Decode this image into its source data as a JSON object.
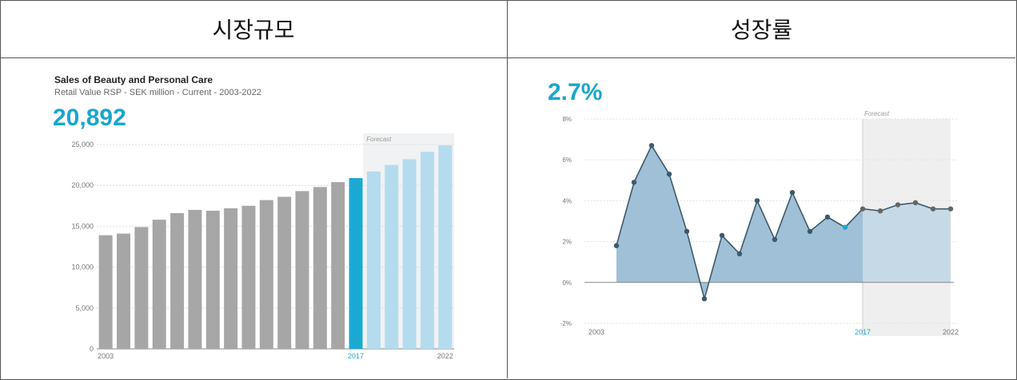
{
  "headers": {
    "left": "시장규모",
    "right": "성장률"
  },
  "colors": {
    "history": "#a6a6a6",
    "current": "#1ba9d3",
    "forecast": "#b4dcee",
    "accent": "#1aa6cc",
    "area_hist": "#9fc0d6",
    "area_fc": "#c6d9e6",
    "line": "#3b5a6e"
  },
  "chart_data": [
    {
      "type": "bar",
      "title": "Sales of Beauty and Personal Care",
      "subtitle": "Retail Value RSP - SEK million - Current - 2003-2022",
      "headline_value": "20,892",
      "categories": [
        2003,
        2004,
        2005,
        2006,
        2007,
        2008,
        2009,
        2010,
        2011,
        2012,
        2013,
        2014,
        2015,
        2016,
        2017,
        2018,
        2019,
        2020,
        2021,
        2022
      ],
      "values": [
        13900,
        14100,
        14900,
        15800,
        16600,
        17000,
        16900,
        17200,
        17500,
        18200,
        18600,
        19300,
        19800,
        20400,
        20892,
        21700,
        22500,
        23200,
        24100,
        24900
      ],
      "forecast_from": 2018,
      "highlight": 2017,
      "forecast_label": "Forecast",
      "ylim": [
        0,
        25000
      ],
      "yticks": [
        "0",
        "5,000",
        "10,000",
        "15,000",
        "20,000",
        "25,000"
      ],
      "ytick_values": [
        0,
        5000,
        10000,
        15000,
        20000,
        25000
      ],
      "xtick_labels": [
        {
          "year": 2003,
          "label": "2003"
        },
        {
          "year": 2017,
          "label": "2017"
        },
        {
          "year": 2022,
          "label": "2022"
        }
      ],
      "grid": true
    },
    {
      "type": "area",
      "headline_value": "2.7%",
      "x": [
        2003,
        2004,
        2005,
        2006,
        2007,
        2008,
        2009,
        2010,
        2011,
        2012,
        2013,
        2014,
        2015,
        2016,
        2017,
        2018,
        2019,
        2020,
        2021,
        2022
      ],
      "values": [
        1.8,
        4.9,
        6.7,
        5.3,
        2.5,
        -0.8,
        2.3,
        1.4,
        4.0,
        2.1,
        4.4,
        2.5,
        3.2,
        2.7,
        3.6,
        3.5,
        3.8,
        3.9,
        3.6,
        3.6
      ],
      "forecast_from": 2017,
      "highlight": 2016,
      "forecast_label": "Forecast",
      "ylim": [
        -2,
        8
      ],
      "yticks": [
        "-2%",
        "0%",
        "2%",
        "4%",
        "6%",
        "8%"
      ],
      "ytick_values": [
        -2,
        0,
        2,
        4,
        6,
        8
      ],
      "xtick_labels": [
        {
          "year": 2003,
          "label": "2003"
        },
        {
          "year": 2017,
          "label": "2017"
        },
        {
          "year": 2022,
          "label": "2022"
        }
      ],
      "grid": true
    }
  ]
}
